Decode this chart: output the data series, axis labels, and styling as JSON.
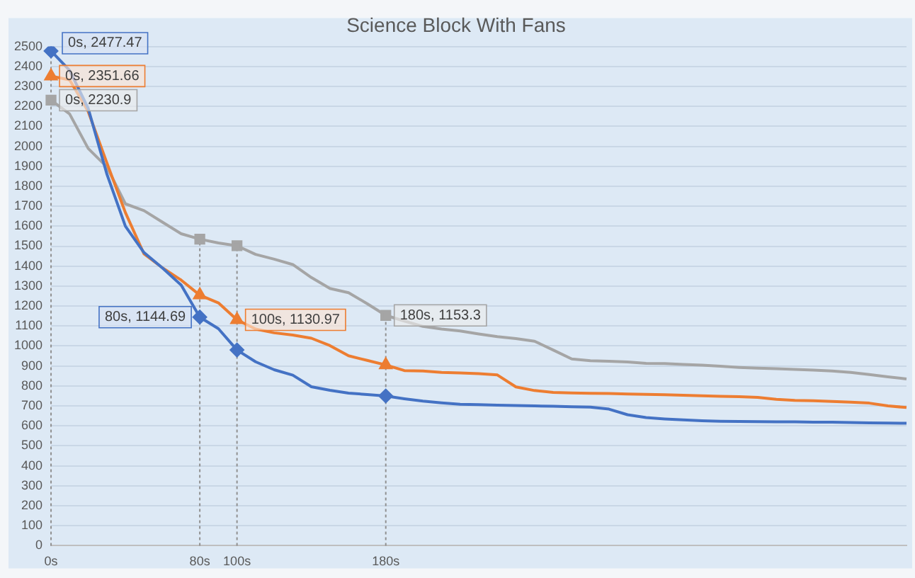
{
  "chart_data": {
    "type": "line",
    "title": "Science Block With Fans",
    "categories": [
      "0s",
      null,
      null,
      null,
      null,
      null,
      null,
      null,
      "80s",
      null,
      "100s",
      null,
      null,
      null,
      null,
      null,
      null,
      null,
      "180s",
      null,
      null,
      null,
      null,
      null,
      null,
      null,
      null,
      null,
      null,
      null,
      null,
      null,
      null,
      null,
      null,
      null,
      null,
      null,
      null,
      null,
      null,
      null,
      null,
      null,
      null,
      null,
      null
    ],
    "series": [
      {
        "color": "#4472c4",
        "values": [
          2477.47,
          2380,
          2190,
          1862,
          1600,
          1468,
          1390,
          1305,
          1144.69,
          1087,
          980,
          921,
          881,
          854,
          796,
          778,
          764,
          757,
          750,
          736,
          724,
          715,
          708,
          706,
          704,
          702,
          700,
          698,
          696,
          694,
          684,
          656,
          642,
          635,
          630,
          626,
          623,
          622,
          621,
          620,
          620,
          619,
          619,
          617,
          615,
          614,
          613
        ]
      },
      {
        "color": "#ed7d31",
        "values": [
          2351.66,
          2333,
          2174,
          1918,
          1668,
          1461,
          1391,
          1330,
          1255,
          1216,
          1130.97,
          1085,
          1066,
          1055,
          1039,
          1002,
          951,
          928,
          905,
          877,
          875,
          868,
          865,
          862,
          855,
          795,
          777,
          768,
          765,
          763,
          762,
          760,
          758,
          756,
          753,
          751,
          748,
          746,
          743,
          733,
          728,
          726,
          722,
          719,
          714,
          700,
          692
        ]
      },
      {
        "color": "#a5a5a5",
        "values": [
          2230.9,
          2162,
          1989,
          1897,
          1712,
          1678,
          1620,
          1562,
          1535,
          1516,
          1502,
          1459,
          1435,
          1408,
          1343,
          1288,
          1267,
          1212,
          1153.3,
          1125,
          1098,
          1085,
          1075,
          1060,
          1047,
          1037,
          1024,
          980,
          935,
          926,
          924,
          920,
          913,
          912,
          908,
          904,
          899,
          893,
          889,
          886,
          883,
          879,
          875,
          868,
          857,
          846,
          835
        ]
      }
    ],
    "ylim": [
      0,
      2500
    ],
    "yticks": [
      0,
      100,
      200,
      300,
      400,
      500,
      600,
      700,
      800,
      900,
      1000,
      1100,
      1200,
      1300,
      1400,
      1500,
      1600,
      1700,
      1800,
      1900,
      2000,
      2100,
      2200,
      2300,
      2400,
      2500
    ],
    "grid": "y",
    "legend": false,
    "ref_lines": [
      {
        "axis": "x",
        "value": "0s"
      },
      {
        "axis": "x",
        "value": "80s"
      },
      {
        "axis": "x",
        "value": "100s"
      },
      {
        "axis": "x",
        "value": "180s"
      }
    ],
    "annotations": [
      {
        "text": "0s, 2477.47",
        "x": "0s",
        "y": 2477.47
      },
      {
        "text": "0s, 2351.66",
        "x": "0s",
        "y": 2351.66
      },
      {
        "text": "0s, 2230.9",
        "x": "0s",
        "y": 2230.9
      },
      {
        "text": "80s, 1144.69",
        "x": "80s",
        "y": 1144.69
      },
      {
        "text": "100s, 1130.97",
        "x": "100s",
        "y": 1130.97
      },
      {
        "text": "180s, 1153.3",
        "x": "180s",
        "y": 1153.3
      }
    ]
  }
}
